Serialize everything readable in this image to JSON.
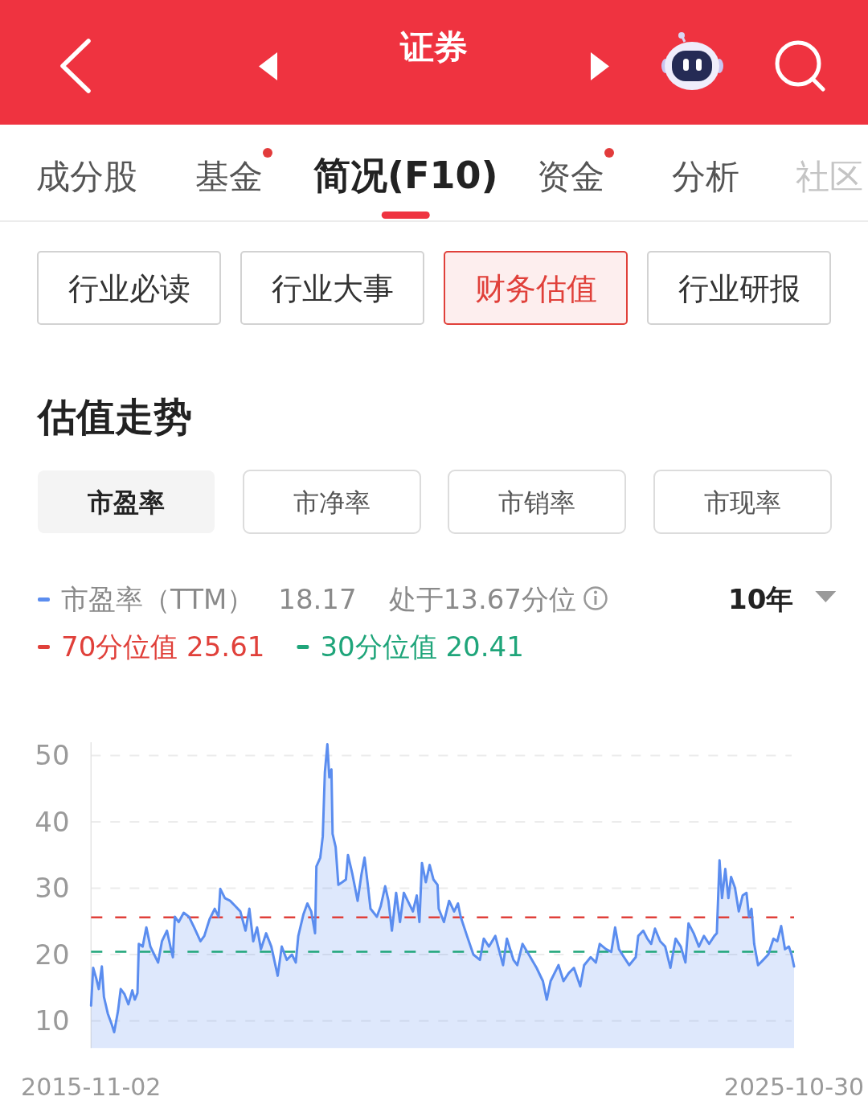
{
  "chart_data": {
    "type": "area",
    "title": "估值走势",
    "annotations": [
      "证券",
      "成分股",
      "基金",
      "简况(F10)",
      "资金",
      "分析",
      "社区",
      "行业必读",
      "行业大事",
      "财务估值",
      "行业研报",
      "市盈率",
      "市净率",
      "市销率",
      "市现率",
      "18.17",
      "处于13.67分位",
      "10年"
    ],
    "x": [
      "2015-11-02",
      "2015-11-13",
      "2015-11-29",
      "2015-12-12",
      "2015-12-28",
      "2016-01-08",
      "2016-01-28",
      "2016-02-17",
      "2016-03-01",
      "2016-03-21",
      "2016-04-04",
      "2016-04-24",
      "2016-05-14",
      "2016-06-03",
      "2016-06-16",
      "2016-06-30",
      "2016-07-07",
      "2016-07-27",
      "2016-08-15",
      "2016-09-05",
      "2016-09-25",
      "2016-10-15",
      "2016-11-04",
      "2016-11-30",
      "2016-12-21",
      "2016-12-31",
      "2017-01-10",
      "2017-01-30",
      "2017-02-25",
      "2017-03-24",
      "2017-04-20",
      "2017-05-23",
      "2017-06-12",
      "2017-07-09",
      "2017-08-05",
      "2017-08-25",
      "2017-09-03",
      "2017-09-27",
      "2017-10-24",
      "2017-11-20",
      "2017-12-16",
      "2018-01-12",
      "2018-02-01",
      "2018-02-21",
      "2018-03-13",
      "2018-04-02",
      "2018-04-29",
      "2018-05-26",
      "2018-06-28",
      "2018-07-19",
      "2018-08-14",
      "2018-09-10",
      "2018-09-30",
      "2018-10-13",
      "2018-11-09",
      "2018-11-29",
      "2018-12-19",
      "2019-01-08",
      "2019-01-15",
      "2019-02-04",
      "2019-02-17",
      "2019-02-28",
      "2019-03-13",
      "2019-03-23",
      "2019-04-03",
      "2019-04-09",
      "2019-04-25",
      "2019-05-09",
      "2019-05-29",
      "2019-06-17",
      "2019-06-28",
      "2019-07-21",
      "2019-08-17",
      "2019-09-06",
      "2019-09-22",
      "2019-10-09",
      "2019-10-23",
      "2019-11-25",
      "2019-12-15",
      "2020-01-07",
      "2020-01-24",
      "2020-02-11",
      "2020-03-04",
      "2020-03-24",
      "2020-04-13",
      "2020-05-03",
      "2020-05-30",
      "2020-06-19",
      "2020-07-03",
      "2020-07-16",
      "2020-08-05",
      "2020-08-25",
      "2020-09-14",
      "2020-10-05",
      "2020-10-11",
      "2020-11-07",
      "2020-12-04",
      "2020-12-30",
      "2021-01-19",
      "2021-02-02",
      "2021-03-07",
      "2021-04-09",
      "2021-05-13",
      "2021-06-02",
      "2021-06-29",
      "2021-08-01",
      "2021-09-10",
      "2021-09-30",
      "2021-11-03",
      "2021-11-23",
      "2021-12-20",
      "2022-01-22",
      "2022-03-03",
      "2022-04-05",
      "2022-04-25",
      "2022-05-15",
      "2022-06-25",
      "2022-07-21",
      "2022-08-17",
      "2022-09-13",
      "2022-10-16",
      "2022-11-05",
      "2022-12-09",
      "2023-01-05",
      "2023-01-25",
      "2023-02-27",
      "2023-03-26",
      "2023-04-15",
      "2023-05-05",
      "2023-05-31",
      "2023-06-27",
      "2023-07-31",
      "2023-08-13",
      "2023-09-08",
      "2023-09-29",
      "2023-10-19",
      "2023-11-08",
      "2023-12-05",
      "2023-12-31",
      "2024-01-27",
      "2024-02-23",
      "2024-03-21",
      "2024-04-14",
      "2024-04-30",
      "2024-05-27",
      "2024-06-23",
      "2024-07-19",
      "2024-08-15",
      "2024-09-11",
      "2024-09-24",
      "2024-10-08",
      "2024-10-21",
      "2024-11-07",
      "2024-11-23",
      "2024-12-07",
      "2024-12-27",
      "2025-01-16",
      "2025-02-05",
      "2025-02-25",
      "2025-03-10",
      "2025-03-23",
      "2025-04-06",
      "2025-04-26",
      "2025-05-23",
      "2025-06-18",
      "2025-07-15",
      "2025-08-04",
      "2025-08-24",
      "2025-09-13",
      "2025-10-03",
      "2025-10-17",
      "2025-10-30"
    ],
    "series": [
      {
        "name": "市盈率（TTM）",
        "color": "#5b8def",
        "values": [
          12.3,
          18.0,
          16.4,
          14.8,
          18.2,
          13.6,
          11.1,
          9.5,
          8.3,
          11.5,
          14.8,
          14.0,
          12.5,
          14.6,
          13.2,
          14.2,
          21.6,
          21.2,
          24.1,
          21.2,
          20.0,
          18.8,
          22.0,
          23.6,
          20.8,
          19.6,
          25.7,
          24.9,
          26.3,
          25.7,
          24.1,
          22.0,
          22.8,
          25.3,
          26.9,
          25.7,
          29.9,
          28.5,
          28.1,
          27.3,
          26.5,
          23.6,
          26.9,
          22.0,
          24.1,
          20.8,
          23.2,
          21.2,
          16.8,
          21.2,
          19.2,
          20.0,
          18.8,
          22.8,
          26.1,
          27.7,
          26.5,
          23.2,
          33.3,
          34.6,
          37.8,
          47.5,
          51.7,
          46.7,
          47.9,
          38.2,
          36.2,
          30.5,
          30.9,
          31.3,
          35.0,
          32.1,
          28.1,
          32.1,
          34.6,
          30.5,
          26.9,
          25.7,
          27.3,
          30.3,
          28.1,
          23.6,
          29.3,
          24.9,
          29.3,
          28.1,
          26.5,
          28.9,
          24.9,
          33.8,
          30.9,
          33.5,
          31.3,
          30.5,
          26.9,
          24.9,
          28.1,
          26.5,
          27.7,
          25.7,
          22.8,
          20.0,
          19.2,
          22.4,
          21.2,
          22.8,
          18.4,
          22.4,
          19.2,
          18.4,
          21.6,
          20.0,
          18.0,
          16.0,
          13.2,
          16.0,
          18.4,
          16.0,
          17.2,
          18.0,
          15.2,
          18.4,
          19.6,
          18.8,
          21.6,
          20.8,
          20.4,
          24.1,
          20.8,
          19.6,
          18.4,
          19.6,
          22.8,
          23.6,
          22.4,
          21.6,
          23.9,
          22.0,
          21.2,
          18.0,
          22.4,
          21.2,
          18.8,
          24.7,
          23.2,
          21.2,
          22.8,
          21.6,
          22.8,
          23.2,
          34.2,
          28.5,
          32.9,
          28.5,
          31.7,
          30.1,
          26.5,
          28.9,
          29.3,
          25.7,
          26.9,
          21.6,
          18.4,
          19.2,
          20.0,
          22.4,
          22.0,
          24.3,
          20.8,
          21.2,
          20.0,
          18.2
        ]
      }
    ],
    "xlim": [
      "2015-11-02",
      "2025-10-30"
    ],
    "xticks": [
      "2015-11-02",
      "2025-10-30"
    ],
    "ylim": [
      5.9,
      52
    ],
    "yticks": [
      10,
      20,
      30,
      40,
      50
    ],
    "grid": "y",
    "legend": "top left",
    "ref_lines": [
      {
        "axis": "y",
        "value": 25.61,
        "label": "70分位值 25.61",
        "color": "#e0403a",
        "line_style": "dashed"
      },
      {
        "axis": "y",
        "value": 20.41,
        "label": "30分位值 20.41",
        "color": "#1fa57a",
        "line_style": "dashed"
      }
    ]
  }
}
